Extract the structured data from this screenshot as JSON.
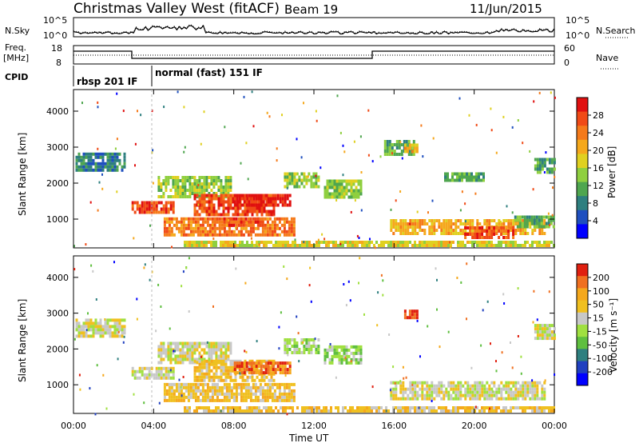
{
  "header": {
    "title": "Christmas Valley West (fitACF)",
    "beam": "Beam 19",
    "date": "11/Jun/2015"
  },
  "top_panels": {
    "nsky_label": "N.Sky",
    "nsearch_label": "N.Search",
    "nsky_ticks": [
      "10^5",
      "10^0"
    ],
    "nsearch_ticks": [
      "10^5",
      "10^0"
    ],
    "freq_label": "Freq.",
    "freq_unit": "[MHz]",
    "freq_ticks": [
      "18",
      "8"
    ],
    "nave_label": "Nave",
    "nave_ticks": [
      "60",
      "0"
    ],
    "cpid_label": "CPID",
    "cpid_segments": [
      {
        "start": 0.0,
        "end": 3.8,
        "label": "rbsp 201 IF"
      },
      {
        "start": 3.8,
        "end": 24.0,
        "label": "normal (fast) 151 IF"
      }
    ]
  },
  "chart_data": [
    {
      "type": "heatmap",
      "name": "power",
      "ylabel": "Slant Range [km]",
      "yticks": [
        1000,
        2000,
        3000,
        4000
      ],
      "ylim": [
        200,
        4600
      ],
      "colorbar": {
        "label": "Power [dB]",
        "ticks": [
          "4",
          "8",
          "12",
          "16",
          "20",
          "24",
          "28"
        ],
        "colors": [
          "#0000ff",
          "#1f4fbf",
          "#2e7f7f",
          "#4fa64f",
          "#8fcf3f",
          "#e0d020",
          "#f5a81c",
          "#f57a1a",
          "#f04a16",
          "#e01010"
        ]
      },
      "regions": [
        {
          "t0": 0.1,
          "t1": 2.5,
          "r0": 2400,
          "r1": 2850,
          "level": 2
        },
        {
          "t0": 2.9,
          "t1": 5.0,
          "r0": 1200,
          "r1": 1500,
          "level": 8
        },
        {
          "t0": 4.2,
          "t1": 7.8,
          "r0": 1600,
          "r1": 2200,
          "level": 4
        },
        {
          "t0": 6.0,
          "t1": 10.0,
          "r0": 1100,
          "r1": 1700,
          "level": 8
        },
        {
          "t0": 8.0,
          "t1": 10.8,
          "r0": 1400,
          "r1": 1700,
          "level": 9
        },
        {
          "t0": 4.5,
          "t1": 11.0,
          "r0": 600,
          "r1": 1050,
          "level": 7
        },
        {
          "t0": 7.0,
          "t1": 9.5,
          "r0": 800,
          "r1": 1050,
          "level": 8
        },
        {
          "t0": 10.5,
          "t1": 12.2,
          "r0": 1900,
          "r1": 2300,
          "level": 4
        },
        {
          "t0": 12.5,
          "t1": 14.3,
          "r0": 1600,
          "r1": 2100,
          "level": 4
        },
        {
          "t0": 15.5,
          "t1": 17.0,
          "r0": 2800,
          "r1": 3200,
          "level": 3
        },
        {
          "t0": 16.5,
          "t1": 17.2,
          "r0": 2900,
          "r1": 3100,
          "level": 6
        },
        {
          "t0": 15.8,
          "t1": 23.5,
          "r0": 600,
          "r1": 1000,
          "level": 6
        },
        {
          "t0": 19.5,
          "t1": 22.0,
          "r0": 500,
          "r1": 800,
          "level": 8
        },
        {
          "t0": 22.0,
          "t1": 24.0,
          "r0": 800,
          "r1": 1100,
          "level": 3
        },
        {
          "t0": 18.5,
          "t1": 20.5,
          "r0": 2100,
          "r1": 2300,
          "level": 3
        },
        {
          "t0": 23.0,
          "t1": 24.0,
          "r0": 2300,
          "r1": 2700,
          "level": 3
        },
        {
          "t0": 5.5,
          "t1": 24.0,
          "r0": 250,
          "r1": 400,
          "level": 5
        }
      ]
    },
    {
      "type": "heatmap",
      "name": "velocity",
      "ylabel": "Slant Range [km]",
      "yticks": [
        1000,
        2000,
        3000,
        4000
      ],
      "ylim": [
        200,
        4600
      ],
      "colorbar": {
        "label": "Velocity [m s⁻¹]",
        "ticks": [
          "200",
          "100",
          "50",
          "15",
          "-15",
          "-50",
          "-100",
          "-200"
        ],
        "colors": [
          "#0000ff",
          "#2040c0",
          "#2e7f7f",
          "#5fbf3f",
          "#a0e040",
          "#c8c8c8",
          "#f0c020",
          "#f5a81c",
          "#f07020",
          "#e02010"
        ]
      },
      "regions": [
        {
          "t0": 0.1,
          "t1": 2.5,
          "r0": 2400,
          "r1": 2850,
          "level": 5
        },
        {
          "t0": 2.9,
          "t1": 5.0,
          "r0": 1200,
          "r1": 1500,
          "level": 5
        },
        {
          "t0": 4.2,
          "t1": 7.8,
          "r0": 1600,
          "r1": 2200,
          "level": 5
        },
        {
          "t0": 6.0,
          "t1": 10.0,
          "r0": 1100,
          "r1": 1700,
          "level": 6
        },
        {
          "t0": 8.0,
          "t1": 10.8,
          "r0": 1300,
          "r1": 1650,
          "level": 8
        },
        {
          "t0": 4.5,
          "t1": 11.0,
          "r0": 600,
          "r1": 1050,
          "level": 6
        },
        {
          "t0": 10.5,
          "t1": 12.2,
          "r0": 1900,
          "r1": 2300,
          "level": 4
        },
        {
          "t0": 12.5,
          "t1": 14.3,
          "r0": 1600,
          "r1": 2100,
          "level": 4
        },
        {
          "t0": 16.5,
          "t1": 17.2,
          "r0": 2900,
          "r1": 3100,
          "level": 9
        },
        {
          "t0": 15.8,
          "t1": 23.5,
          "r0": 600,
          "r1": 1100,
          "level": 5
        },
        {
          "t0": 23.0,
          "t1": 24.0,
          "r0": 2300,
          "r1": 2700,
          "level": 5
        },
        {
          "t0": 5.5,
          "t1": 24.0,
          "r0": 250,
          "r1": 400,
          "level": 6
        }
      ]
    }
  ],
  "x_axis": {
    "label": "Time UT",
    "ticks": [
      "00:00",
      "04:00",
      "08:00",
      "12:00",
      "16:00",
      "20:00",
      "00:00"
    ],
    "tick_hours": [
      0,
      4,
      8,
      12,
      16,
      20,
      24
    ]
  }
}
